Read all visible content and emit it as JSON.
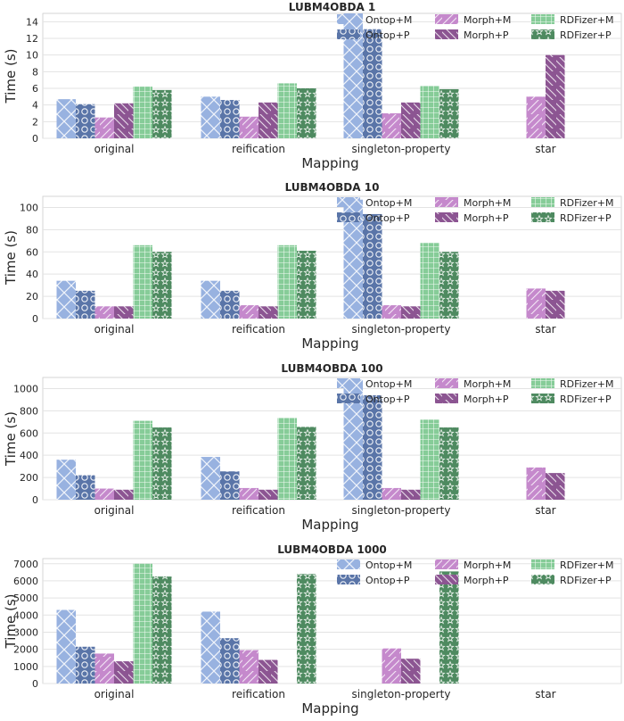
{
  "colors": {
    "ontop_m": "#98b2e0",
    "ontop_p": "#5a75a8",
    "morph_m": "#c589cc",
    "morph_p": "#8c5592",
    "rdfizer_m": "#86cc98",
    "rdfizer_p": "#4e8a60",
    "grid": "#e3e3e3",
    "axis": "#cccccc"
  },
  "chart_data": [
    {
      "type": "bar",
      "title": "LUBM4OBDA 1",
      "xlabel": "Mapping",
      "ylabel": "Time (s)",
      "ylim": [
        0,
        15
      ],
      "yticks": [
        "0",
        "2",
        "4",
        "6",
        "8",
        "10",
        "12",
        "14"
      ],
      "ytick_values": [
        0,
        2,
        4,
        6,
        8,
        10,
        12,
        14
      ],
      "legend": "top-right",
      "categories": [
        "original",
        "reification",
        "singleton-property",
        "star"
      ],
      "series": [
        {
          "name": "Ontop+M",
          "key": "ontop_m",
          "pattern": "cross",
          "values": [
            4.7,
            5.0,
            15.0,
            null
          ]
        },
        {
          "name": "Ontop+P",
          "key": "ontop_p",
          "pattern": "circle",
          "values": [
            4.1,
            4.6,
            13.1,
            null
          ]
        },
        {
          "name": "Morph+M",
          "key": "morph_m",
          "pattern": "slash",
          "values": [
            2.5,
            2.6,
            3.0,
            5.0
          ]
        },
        {
          "name": "Morph+P",
          "key": "morph_p",
          "pattern": "backslash",
          "values": [
            4.2,
            4.3,
            4.3,
            10.0
          ]
        },
        {
          "name": "RDFizer+M",
          "key": "rdfizer_m",
          "pattern": "grid",
          "values": [
            6.2,
            6.6,
            6.3,
            null
          ]
        },
        {
          "name": "RDFizer+P",
          "key": "rdfizer_p",
          "pattern": "star",
          "values": [
            5.8,
            6.0,
            5.9,
            null
          ]
        }
      ]
    },
    {
      "type": "bar",
      "title": "LUBM4OBDA 10",
      "xlabel": "Mapping",
      "ylabel": "Time (s)",
      "ylim": [
        0,
        110
      ],
      "yticks": [
        "0",
        "20",
        "40",
        "60",
        "80",
        "100"
      ],
      "ytick_values": [
        0,
        20,
        40,
        60,
        80,
        100
      ],
      "legend": "top-right",
      "categories": [
        "original",
        "reification",
        "singleton-property",
        "star"
      ],
      "series": [
        {
          "name": "Ontop+M",
          "key": "ontop_m",
          "pattern": "cross",
          "values": [
            34,
            34,
            107,
            null
          ]
        },
        {
          "name": "Ontop+P",
          "key": "ontop_p",
          "pattern": "circle",
          "values": [
            25,
            25,
            94,
            null
          ]
        },
        {
          "name": "Morph+M",
          "key": "morph_m",
          "pattern": "slash",
          "values": [
            11,
            12,
            12,
            27
          ]
        },
        {
          "name": "Morph+P",
          "key": "morph_p",
          "pattern": "backslash",
          "values": [
            11,
            11,
            11,
            25
          ]
        },
        {
          "name": "RDFizer+M",
          "key": "rdfizer_m",
          "pattern": "grid",
          "values": [
            66,
            66,
            68,
            null
          ]
        },
        {
          "name": "RDFizer+P",
          "key": "rdfizer_p",
          "pattern": "star",
          "values": [
            60,
            61,
            60,
            null
          ]
        }
      ]
    },
    {
      "type": "bar",
      "title": "LUBM4OBDA 100",
      "xlabel": "Mapping",
      "ylabel": "Time (s)",
      "ylim": [
        0,
        1100
      ],
      "yticks": [
        "0",
        "200",
        "400",
        "600",
        "800",
        "1000"
      ],
      "ytick_values": [
        0,
        200,
        400,
        600,
        800,
        1000
      ],
      "legend": "top-right",
      "categories": [
        "original",
        "reification",
        "singleton-property",
        "star"
      ],
      "series": [
        {
          "name": "Ontop+M",
          "key": "ontop_m",
          "pattern": "cross",
          "values": [
            360,
            385,
            1080,
            null
          ]
        },
        {
          "name": "Ontop+P",
          "key": "ontop_p",
          "pattern": "circle",
          "values": [
            220,
            255,
            940,
            null
          ]
        },
        {
          "name": "Morph+M",
          "key": "morph_m",
          "pattern": "slash",
          "values": [
            100,
            105,
            105,
            290
          ]
        },
        {
          "name": "Morph+P",
          "key": "morph_p",
          "pattern": "backslash",
          "values": [
            90,
            90,
            90,
            240
          ]
        },
        {
          "name": "RDFizer+M",
          "key": "rdfizer_m",
          "pattern": "grid",
          "values": [
            710,
            735,
            720,
            null
          ]
        },
        {
          "name": "RDFizer+P",
          "key": "rdfizer_p",
          "pattern": "star",
          "values": [
            650,
            655,
            650,
            null
          ]
        }
      ]
    },
    {
      "type": "bar",
      "title": "LUBM4OBDA 1000",
      "xlabel": "Mapping",
      "ylabel": "Time (s)",
      "ylim": [
        0,
        7300
      ],
      "yticks": [
        "0",
        "1000",
        "2000",
        "3000",
        "4000",
        "5000",
        "6000",
        "7000"
      ],
      "ytick_values": [
        0,
        1000,
        2000,
        3000,
        4000,
        5000,
        6000,
        7000
      ],
      "legend": "top-right",
      "categories": [
        "original",
        "reification",
        "singleton-property",
        "star"
      ],
      "series": [
        {
          "name": "Ontop+M",
          "key": "ontop_m",
          "pattern": "cross",
          "values": [
            4300,
            4200,
            null,
            null
          ]
        },
        {
          "name": "Ontop+P",
          "key": "ontop_p",
          "pattern": "circle",
          "values": [
            2150,
            2650,
            null,
            null
          ]
        },
        {
          "name": "Morph+M",
          "key": "morph_m",
          "pattern": "slash",
          "values": [
            1750,
            1950,
            2050,
            null
          ]
        },
        {
          "name": "Morph+P",
          "key": "morph_p",
          "pattern": "backslash",
          "values": [
            1300,
            1380,
            1450,
            null
          ]
        },
        {
          "name": "RDFizer+M",
          "key": "rdfizer_m",
          "pattern": "grid",
          "values": [
            7000,
            null,
            null,
            null
          ]
        },
        {
          "name": "RDFizer+P",
          "key": "rdfizer_p",
          "pattern": "star",
          "values": [
            6250,
            6400,
            6550,
            null
          ]
        }
      ]
    }
  ]
}
